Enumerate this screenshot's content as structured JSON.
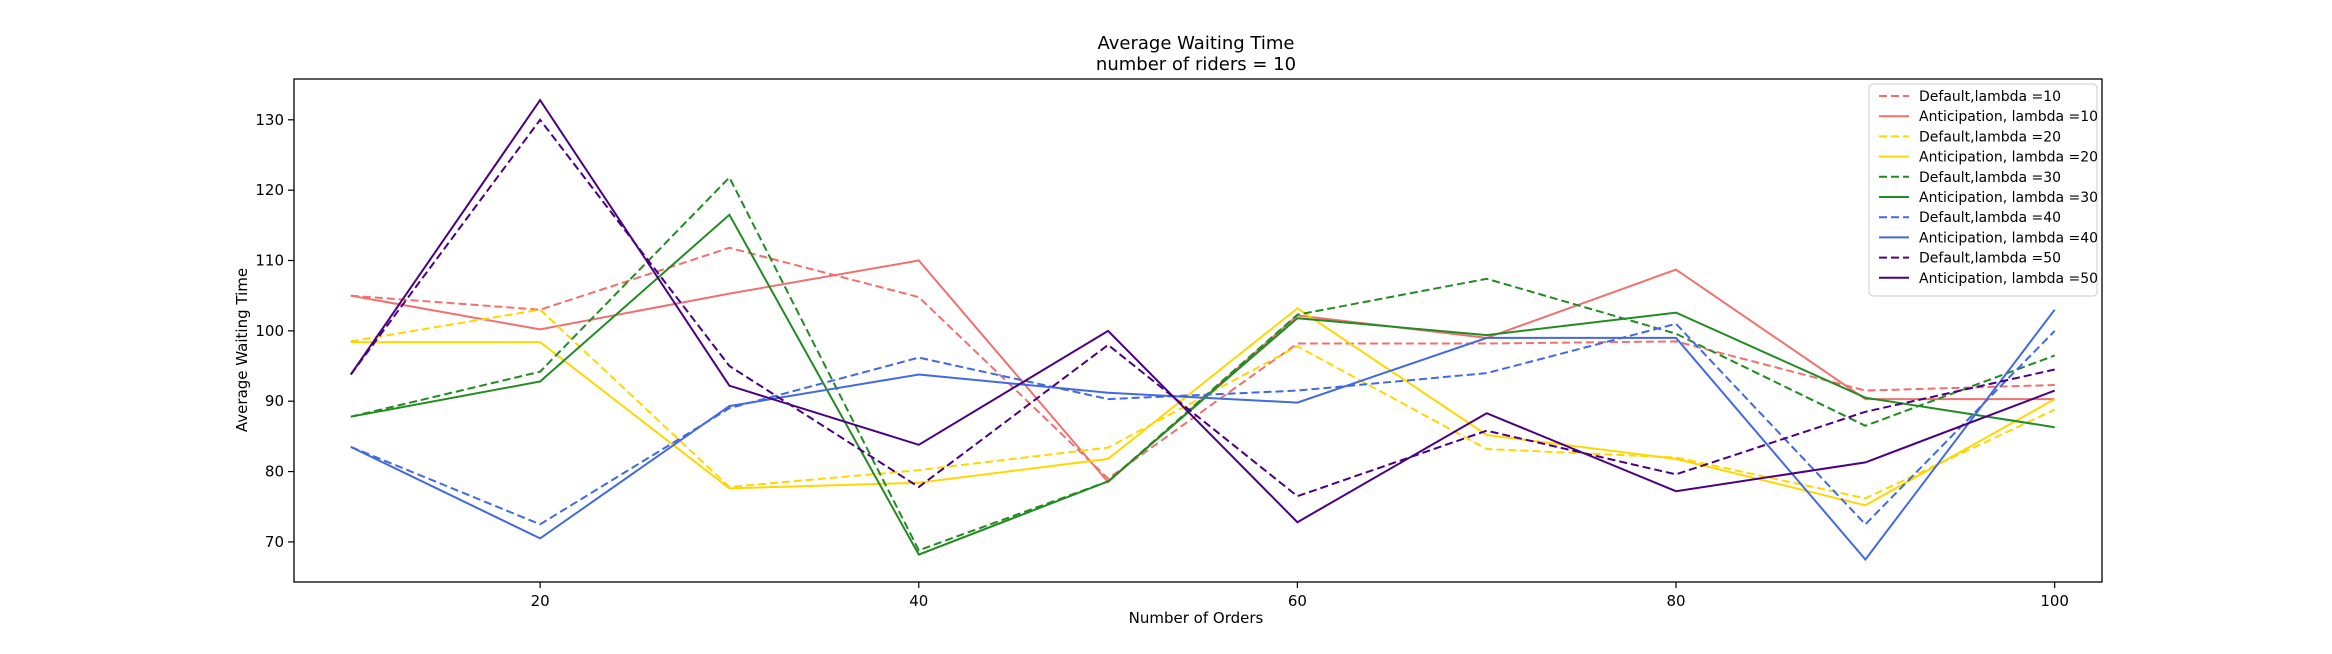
{
  "chart_data": {
    "type": "line",
    "title": "Average Waiting Time",
    "subtitle": "number of riders = 10",
    "xlabel": "Number of Orders",
    "ylabel": "Average Waiting Time",
    "xlim": [
      7,
      102.5
    ],
    "ylim": [
      64.3,
      135.8
    ],
    "xticks": [
      20,
      40,
      60,
      80,
      100
    ],
    "yticks": [
      70,
      80,
      90,
      100,
      110,
      120,
      130
    ],
    "grid": false,
    "legend_position": "top-right",
    "x": [
      10,
      20,
      30,
      40,
      50,
      60,
      70,
      80,
      90,
      100
    ],
    "series": [
      {
        "name": "Default,lambda =10",
        "color": "#f07070",
        "style": "dashed",
        "values": [
          105.0,
          103.0,
          111.8,
          104.8,
          79.0,
          98.2,
          98.2,
          98.5,
          91.5,
          92.3
        ]
      },
      {
        "name": "Anticipation, lambda =10",
        "color": "#f07070",
        "style": "solid",
        "values": [
          105.0,
          100.2,
          105.3,
          110.0,
          78.5,
          102.2,
          99.0,
          108.7,
          90.3,
          90.3
        ]
      },
      {
        "name": "Default,lambda =20",
        "color": "#ffd700",
        "style": "dashed",
        "values": [
          98.5,
          103.0,
          77.8,
          80.2,
          83.4,
          97.8,
          83.2,
          82.0,
          76.2,
          88.8
        ]
      },
      {
        "name": "Anticipation, lambda =20",
        "color": "#ffd700",
        "style": "solid",
        "values": [
          98.4,
          98.4,
          77.6,
          78.4,
          81.8,
          103.2,
          85.2,
          81.8,
          75.2,
          90.3
        ]
      },
      {
        "name": "Default,lambda =30",
        "color": "#228b22",
        "style": "dashed",
        "values": [
          87.8,
          94.2,
          121.8,
          68.8,
          78.6,
          102.3,
          107.4,
          99.6,
          86.5,
          96.5
        ]
      },
      {
        "name": "Anticipation, lambda =30",
        "color": "#228b22",
        "style": "solid",
        "values": [
          87.8,
          92.8,
          116.5,
          68.2,
          78.6,
          101.8,
          99.4,
          102.6,
          90.5,
          86.3
        ]
      },
      {
        "name": "Default,lambda =40",
        "color": "#4169e1",
        "style": "dashed",
        "values": [
          83.5,
          72.5,
          89.0,
          96.2,
          90.3,
          91.5,
          94.0,
          101.0,
          72.5,
          100.0
        ]
      },
      {
        "name": "Anticipation, lambda =40",
        "color": "#4169e1",
        "style": "solid",
        "values": [
          83.5,
          70.5,
          89.3,
          93.8,
          91.2,
          89.8,
          99.0,
          99.0,
          67.5,
          103.0
        ]
      },
      {
        "name": "Default,lambda =50",
        "color": "#4b0082",
        "style": "dashed",
        "values": [
          93.8,
          130.0,
          95.0,
          77.8,
          98.0,
          76.5,
          85.8,
          79.6,
          88.5,
          94.5
        ]
      },
      {
        "name": "Anticipation, lambda =50",
        "color": "#4b0082",
        "style": "solid",
        "values": [
          93.8,
          132.8,
          92.2,
          83.8,
          100.0,
          72.8,
          88.3,
          77.2,
          81.3,
          91.5
        ]
      }
    ]
  }
}
